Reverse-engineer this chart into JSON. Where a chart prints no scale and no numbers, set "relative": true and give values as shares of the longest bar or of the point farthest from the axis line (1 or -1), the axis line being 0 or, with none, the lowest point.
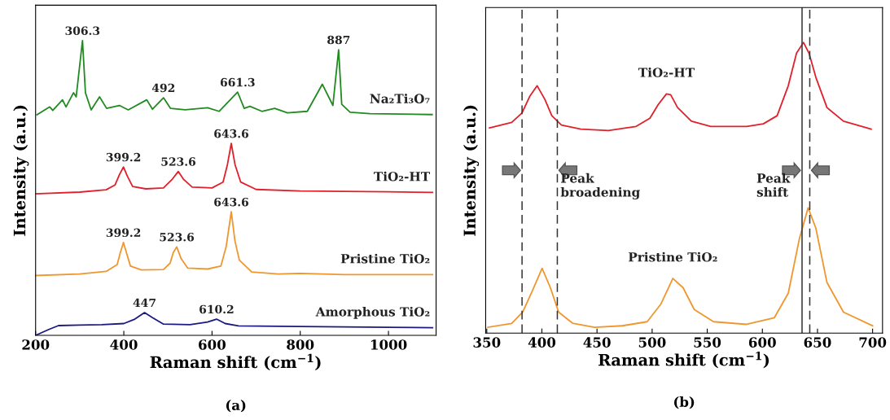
{
  "chart_data": [
    {
      "type": "line",
      "relative": true,
      "tick_labels": "x",
      "xlim": [
        200,
        1108
      ],
      "xticks": [
        200,
        400,
        600,
        800,
        1000
      ],
      "xlabel": "Raman shift (cm$^{−1}$)",
      "ylabel": "Intensity (a.u.)",
      "series": [
        {
          "name": "Na₂Ti₃O₇",
          "color": "#218a21",
          "x": [
            203,
            232,
            239,
            261,
            269,
            286,
            292,
            306.3,
            313,
            326,
            345,
            361,
            390,
            410,
            452,
            465,
            490,
            506,
            539,
            590,
            616,
            658,
            673,
            686,
            713,
            742,
            771,
            816,
            850,
            874,
            887,
            894,
            913,
            958,
            1099
          ],
          "values": [
            0.748,
            0.775,
            0.763,
            0.799,
            0.775,
            0.823,
            0.809,
            1.0,
            0.823,
            0.765,
            0.809,
            0.77,
            0.78,
            0.765,
            0.799,
            0.767,
            0.806,
            0.77,
            0.765,
            0.772,
            0.76,
            0.825,
            0.77,
            0.777,
            0.76,
            0.77,
            0.755,
            0.76,
            0.852,
            0.78,
            0.969,
            0.784,
            0.757,
            0.752,
            0.749
          ]
        },
        {
          "name": "TiO₂-HT",
          "color": "#e0202a",
          "x": [
            200,
            300,
            360,
            380,
            390,
            399.2,
            408,
            420,
            450,
            490,
            510,
            523.6,
            535,
            555,
            600,
            625,
            635,
            643.6,
            652,
            665,
            700,
            800,
            1000,
            1100
          ],
          "values": [
            0.48,
            0.486,
            0.494,
            0.51,
            0.545,
            0.571,
            0.54,
            0.505,
            0.497,
            0.5,
            0.53,
            0.556,
            0.53,
            0.503,
            0.5,
            0.52,
            0.58,
            0.651,
            0.58,
            0.52,
            0.495,
            0.49,
            0.487,
            0.485
          ]
        },
        {
          "name": "Pristine TiO₂",
          "color": "#f0962e",
          "x": [
            200,
            300,
            360,
            385,
            392,
            399.2,
            406,
            415,
            440,
            490,
            505,
            512,
            520,
            530,
            545,
            590,
            620,
            632,
            643.6,
            652,
            662,
            690,
            750,
            800,
            900,
            1100
          ],
          "values": [
            0.203,
            0.208,
            0.217,
            0.24,
            0.28,
            0.315,
            0.28,
            0.235,
            0.222,
            0.223,
            0.245,
            0.28,
            0.3,
            0.26,
            0.228,
            0.225,
            0.235,
            0.3,
            0.419,
            0.32,
            0.255,
            0.215,
            0.208,
            0.21,
            0.206,
            0.206
          ]
        },
        {
          "name": "Amorphous TiO₂",
          "color": "#1a1a80",
          "x": [
            200,
            230,
            252,
            300,
            350,
            400,
            425,
            447,
            465,
            490,
            550,
            590,
            610.2,
            630,
            660,
            800,
            1000,
            1100
          ],
          "values": [
            0.0,
            0.02,
            0.033,
            0.035,
            0.036,
            0.04,
            0.055,
            0.077,
            0.06,
            0.038,
            0.036,
            0.045,
            0.055,
            0.04,
            0.032,
            0.03,
            0.027,
            0.026
          ]
        }
      ],
      "annotations": [
        {
          "text": "306.3",
          "x": 306.3,
          "y": 1.0
        },
        {
          "text": "492",
          "x": 490,
          "y": 0.806
        },
        {
          "text": "661.3",
          "x": 658,
          "y": 0.825
        },
        {
          "text": "887",
          "x": 887,
          "y": 0.969
        },
        {
          "text": "399.2",
          "x": 399.2,
          "y": 0.571
        },
        {
          "text": "523.6",
          "x": 523.6,
          "y": 0.556
        },
        {
          "text": "643.6",
          "x": 643.6,
          "y": 0.651
        },
        {
          "text": "399.2",
          "x": 399.2,
          "y": 0.315
        },
        {
          "text": "523.6",
          "x": 520,
          "y": 0.3
        },
        {
          "text": "643.6",
          "x": 643.6,
          "y": 0.419
        },
        {
          "text": "447",
          "x": 447,
          "y": 0.077
        },
        {
          "text": "610.2",
          "x": 610.2,
          "y": 0.055
        },
        "(a)"
      ]
    },
    {
      "type": "line",
      "relative": true,
      "tick_labels": "x",
      "xlim": [
        349,
        709
      ],
      "xticks": [
        350,
        400,
        450,
        500,
        550,
        600,
        650,
        700
      ],
      "xlabel": "Raman shift (cm$^{−1}$)",
      "ylabel": "Intensity (a.u.)",
      "series": [
        {
          "name": "TiO₂-HT",
          "color": "#e0202a",
          "x": [
            352.5,
            372.6,
            381.9,
            388.9,
            395.7,
            402.7,
            409,
            417.7,
            435.3,
            460.4,
            485.5,
            498,
            505.5,
            513,
            516.8,
            523.1,
            535.6,
            553.2,
            585.8,
            600.9,
            613.4,
            623.5,
            631,
            637.3,
            642.3,
            648.6,
            658.6,
            673.6,
            698.7
          ],
          "values": [
            0.706,
            0.725,
            0.757,
            0.814,
            0.851,
            0.804,
            0.748,
            0.716,
            0.702,
            0.697,
            0.711,
            0.739,
            0.786,
            0.823,
            0.82,
            0.776,
            0.729,
            0.711,
            0.711,
            0.72,
            0.748,
            0.851,
            0.963,
            1.0,
            0.963,
            0.879,
            0.776,
            0.729,
            0.702
          ]
        },
        {
          "name": "Pristine TiO₂",
          "color": "#f0962e",
          "x": [
            351,
            372.6,
            382.6,
            391.4,
            400.2,
            407.7,
            415.2,
            427.8,
            447.8,
            472.9,
            495.5,
            508,
            518.8,
            528.1,
            538.2,
            555.7,
            585.8,
            610.9,
            623.5,
            633.5,
            641.5,
            648.5,
            658.6,
            673.6,
            700
          ],
          "values": [
            0.02,
            0.033,
            0.072,
            0.146,
            0.223,
            0.156,
            0.072,
            0.034,
            0.02,
            0.025,
            0.039,
            0.1,
            0.188,
            0.156,
            0.081,
            0.039,
            0.03,
            0.053,
            0.137,
            0.323,
            0.431,
            0.361,
            0.174,
            0.072,
            0.025
          ]
        }
      ],
      "ref_lines": [
        {
          "axis": "x",
          "value": 382,
          "color": "#333333",
          "line_style": "dashed"
        },
        {
          "axis": "x",
          "value": 414,
          "color": "#333333",
          "line_style": "dashed"
        },
        {
          "axis": "x",
          "value": 636,
          "color": "#333333",
          "line_style": "solid"
        },
        {
          "axis": "x",
          "value": 643,
          "color": "#333333",
          "line_style": "dashed"
        }
      ],
      "annotations": [
        "Peak broadening",
        "Peak shift",
        "(b)"
      ]
    }
  ]
}
